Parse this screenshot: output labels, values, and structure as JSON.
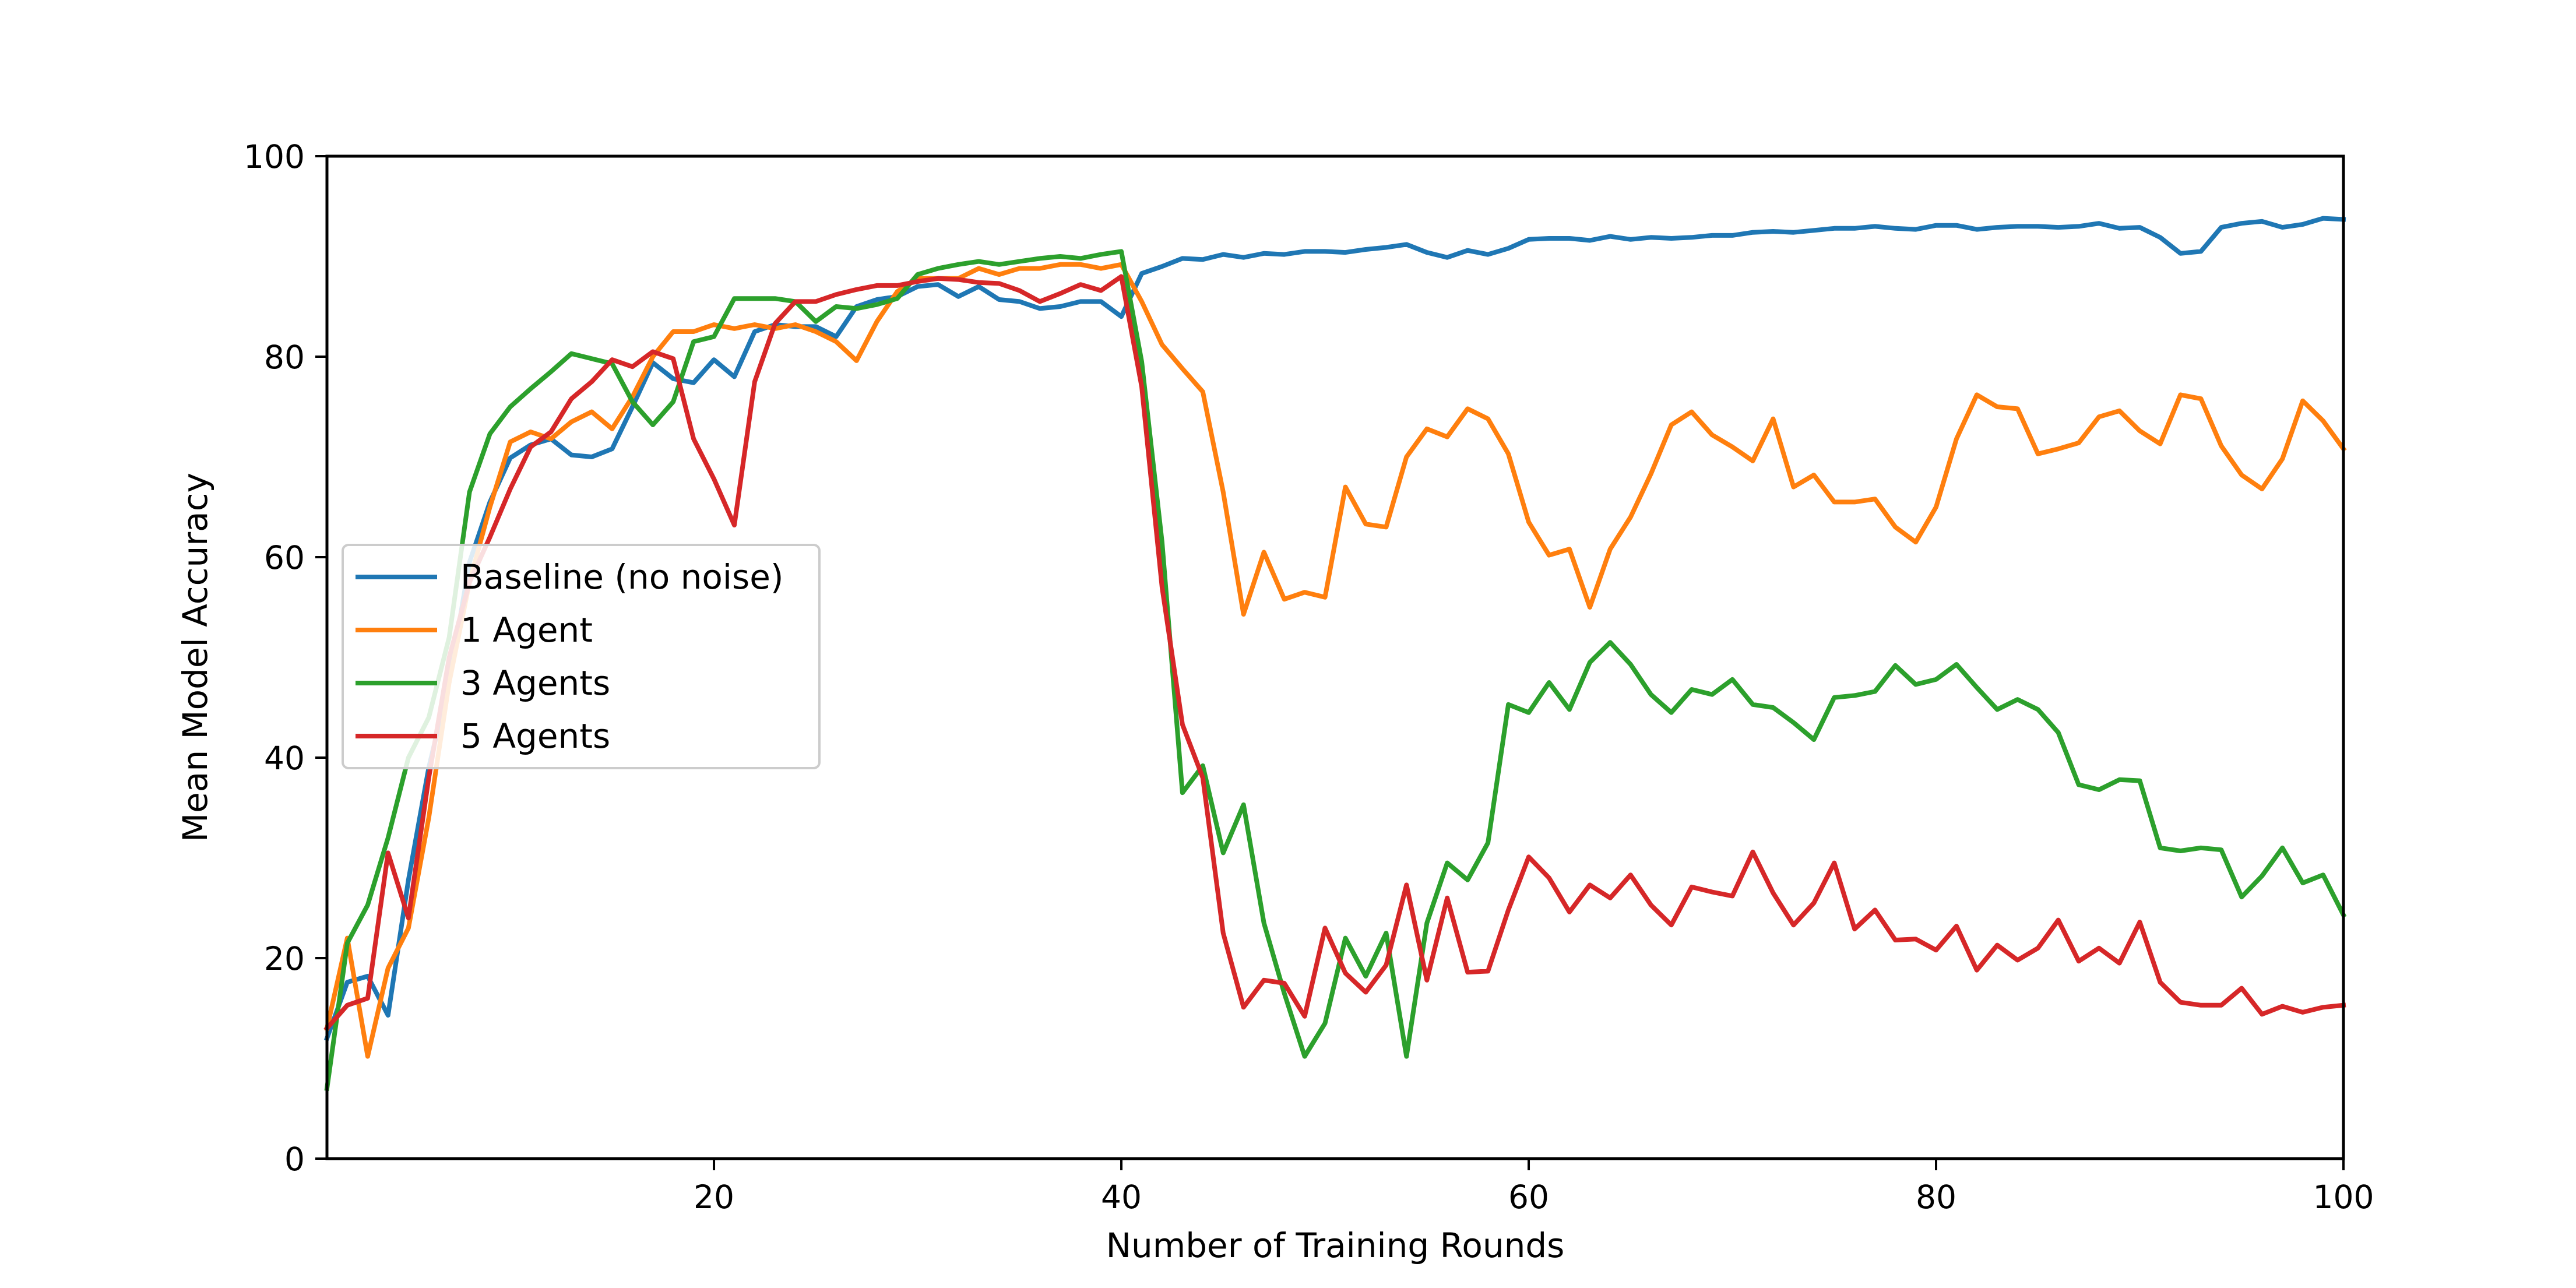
{
  "chart_data": {
    "type": "line",
    "title": "",
    "xlabel": "Number of Training Rounds",
    "ylabel": "Mean Model Accuracy",
    "xlim": [
      1,
      100
    ],
    "ylim": [
      0,
      100
    ],
    "xticks": [
      20,
      40,
      60,
      80,
      100
    ],
    "yticks": [
      0,
      20,
      40,
      60,
      80,
      100
    ],
    "grid": false,
    "legend_position": "center-left",
    "series": [
      {
        "name": "Baseline (no noise)",
        "color": "#1f77b4",
        "values": [
          12,
          17.6,
          18.2,
          14.3,
          27.8,
          39,
          47.5,
          59.5,
          65.5,
          69.9,
          71.2,
          71.8,
          70.2,
          70,
          70.8,
          75,
          79.4,
          77.8,
          77.4,
          79.7,
          78,
          82.5,
          83.2,
          83,
          83,
          82,
          85,
          85.7,
          86,
          87,
          87.2,
          86,
          87,
          85.7,
          85.5,
          84.8,
          85,
          85.5,
          85.5,
          84,
          88.3,
          89,
          89.8,
          89.7,
          90.2,
          89.9,
          90.3,
          90.2,
          90.5,
          90.5,
          90.4,
          90.7,
          90.9,
          91.2,
          90.4,
          89.9,
          90.6,
          90.2,
          90.8,
          91.7,
          91.8,
          91.8,
          91.6,
          92,
          91.7,
          91.9,
          91.8,
          91.9,
          92.1,
          92.1,
          92.4,
          92.5,
          92.4,
          92.6,
          92.8,
          92.8,
          93,
          92.8,
          92.7,
          93.1,
          93.1,
          92.7,
          92.9,
          93,
          93,
          92.9,
          93,
          93.3,
          92.8,
          92.9,
          91.9,
          90.3,
          90.5,
          92.9,
          93.3,
          93.5,
          92.9,
          93.2,
          93.8,
          93.7
        ]
      },
      {
        "name": "1 Agent",
        "color": "#ff7f0e",
        "values": [
          13,
          22,
          10.2,
          19,
          23,
          34,
          47.5,
          57.5,
          65,
          71.5,
          72.5,
          71.8,
          73.5,
          74.5,
          72.8,
          76,
          80,
          82.5,
          82.5,
          83.2,
          82.8,
          83.2,
          82.8,
          83.2,
          82.5,
          81.5,
          79.6,
          83.5,
          86.5,
          87.8,
          87.8,
          87.8,
          88.8,
          88.2,
          88.8,
          88.8,
          89.2,
          89.2,
          88.8,
          89.2,
          85.5,
          81.2,
          78.8,
          76.5,
          66.5,
          54.3,
          60.5,
          55.8,
          56.5,
          56,
          67,
          63.3,
          63,
          70,
          72.8,
          72,
          74.8,
          73.8,
          70.3,
          63.5,
          60.2,
          60.8,
          55,
          60.8,
          64,
          68.3,
          73.2,
          74.5,
          72.2,
          71,
          69.6,
          73.8,
          67,
          68.2,
          65.5,
          65.5,
          65.8,
          63,
          61.5,
          65,
          71.8,
          76.2,
          75,
          74.8,
          70.3,
          70.8,
          71.4,
          74,
          74.6,
          72.6,
          71.3,
          76.2,
          75.8,
          71.1,
          68.2,
          66.8,
          69.8,
          75.6,
          73.6,
          70.8
        ]
      },
      {
        "name": "3 Agents",
        "color": "#2ca02c",
        "values": [
          7,
          21.5,
          25.3,
          32,
          40,
          44,
          52,
          66.5,
          72.3,
          75,
          76.8,
          78.5,
          80.3,
          79.8,
          79.3,
          75.5,
          73.2,
          75.5,
          81.5,
          82,
          85.8,
          85.8,
          85.8,
          85.5,
          83.5,
          85,
          84.8,
          85.2,
          85.8,
          88.2,
          88.8,
          89.2,
          89.5,
          89.2,
          89.5,
          89.8,
          90,
          89.8,
          90.2,
          90.5,
          79.5,
          61.5,
          36.5,
          39.2,
          30.5,
          35.3,
          23.5,
          16.5,
          10.2,
          13.5,
          22,
          18.2,
          22.5,
          10.2,
          23.5,
          29.5,
          27.8,
          31.5,
          45.3,
          44.5,
          47.5,
          44.8,
          49.5,
          51.5,
          49.3,
          46.3,
          44.5,
          46.8,
          46.3,
          47.8,
          45.3,
          45,
          43.5,
          41.8,
          46,
          46.2,
          46.6,
          49.2,
          47.3,
          47.8,
          49.3,
          47,
          44.8,
          45.8,
          44.8,
          42.5,
          37.3,
          36.8,
          37.8,
          37.7,
          31,
          30.7,
          31,
          30.8,
          26.1,
          28.2,
          31,
          27.5,
          28.3,
          24.3
        ]
      },
      {
        "name": "5 Agents",
        "color": "#d62728",
        "values": [
          13,
          15.3,
          16,
          30.5,
          24,
          38,
          50,
          57.5,
          62,
          66.8,
          71,
          72.5,
          75.8,
          77.5,
          79.7,
          79,
          80.5,
          79.8,
          71.8,
          67.8,
          63.2,
          77.5,
          83.3,
          85.5,
          85.5,
          86.2,
          86.7,
          87.1,
          87.1,
          87.5,
          87.8,
          87.7,
          87.4,
          87.3,
          86.6,
          85.5,
          86.3,
          87.2,
          86.6,
          88,
          77,
          57,
          43.3,
          38,
          22.5,
          15.1,
          17.8,
          17.5,
          14.2,
          23,
          18.5,
          16.6,
          19.3,
          27.3,
          17.8,
          26,
          18.6,
          18.7,
          24.8,
          30.1,
          28,
          24.6,
          27.3,
          26,
          28.3,
          25.3,
          23.3,
          27.1,
          26.6,
          26.2,
          30.6,
          26.5,
          23.3,
          25.5,
          29.5,
          22.9,
          24.8,
          21.8,
          21.9,
          20.8,
          23.2,
          18.8,
          21.3,
          19.8,
          21,
          23.8,
          19.7,
          21,
          19.5,
          23.6,
          17.6,
          15.6,
          15.3,
          15.3,
          17,
          14.4,
          15.2,
          14.6,
          15.1,
          15.3
        ]
      }
    ]
  }
}
